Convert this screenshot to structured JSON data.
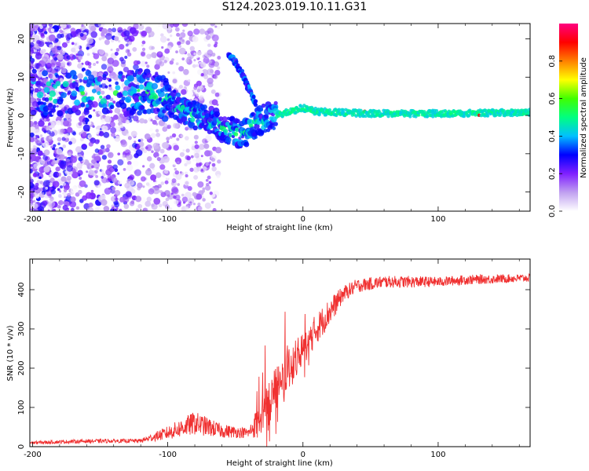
{
  "figure": {
    "title": "S124.2023.019.10.11.G31"
  },
  "chart_data": [
    {
      "type": "heatmap",
      "title": "S124.2023.019.10.11.G31",
      "xlabel": "Height of straight line (km)",
      "ylabel": "Frequency (Hz)",
      "xlim": [
        -202,
        168
      ],
      "ylim": [
        -25,
        24
      ],
      "x_ticks": [
        -200,
        -100,
        0,
        100
      ],
      "y_ticks": [
        -20,
        -10,
        0,
        10,
        20
      ],
      "colorbar": {
        "label": "Normalized spectral amplitude",
        "range": [
          0,
          1
        ],
        "ticks": [
          "0.0",
          "0.2",
          "0.4",
          "0.6",
          "0.8"
        ],
        "colormap": [
          "#ffffff",
          "#c0a0f0",
          "#8020ff",
          "#0000ff",
          "#00c0ff",
          "#00ff80",
          "#40ff00",
          "#ffff00",
          "#ff8000",
          "#ff0000",
          "#ff0080"
        ]
      },
      "ridges": [
        {
          "x": [
            -110,
            -95,
            -80,
            -65,
            -55,
            -45,
            -38,
            -30,
            -20,
            -10,
            0,
            10,
            50,
            100,
            168
          ],
          "y": [
            6,
            3,
            0,
            -2,
            -4,
            -5,
            -3,
            -1,
            0,
            1,
            2,
            1,
            0.5,
            0.5,
            0.8
          ]
        },
        {
          "x": [
            -55,
            -50,
            -45,
            -40,
            -35
          ],
          "y": [
            16,
            14,
            11,
            7,
            3
          ]
        }
      ]
    },
    {
      "type": "line",
      "xlabel": "Height of straight line (km)",
      "ylabel": "SNR (10 * v/v)",
      "xlim": [
        -202,
        168
      ],
      "ylim": [
        0,
        478
      ],
      "x_ticks": [
        -200,
        -100,
        0,
        100
      ],
      "y_ticks": [
        0,
        100,
        200,
        300,
        400
      ],
      "line_color": "#f03030",
      "envelope": {
        "x": [
          -202,
          -160,
          -120,
          -100,
          -80,
          -60,
          -40,
          -30,
          -20,
          -10,
          0,
          10,
          20,
          30,
          40,
          60,
          80,
          100,
          120,
          168
        ],
        "y": [
          10,
          14,
          15,
          35,
          60,
          40,
          35,
          80,
          150,
          200,
          250,
          300,
          345,
          390,
          410,
          420,
          420,
          420,
          425,
          430
        ],
        "spread": [
          8,
          10,
          10,
          35,
          60,
          35,
          25,
          120,
          120,
          100,
          90,
          80,
          70,
          40,
          35,
          30,
          30,
          25,
          25,
          20
        ]
      }
    }
  ]
}
